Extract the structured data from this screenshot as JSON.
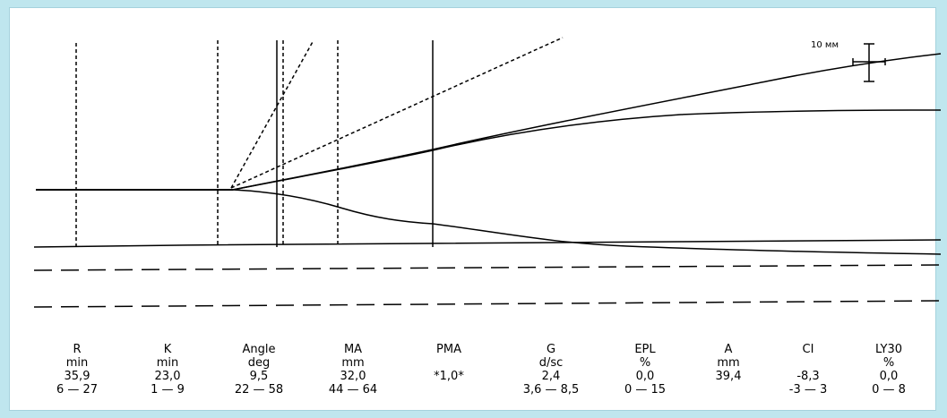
{
  "scale_label": "10 мм",
  "colors": {
    "background": "#bfe6ee",
    "panel": "#ffffff",
    "trace": "#000000"
  },
  "params": [
    {
      "name": "R",
      "unit": "min",
      "value": "35,9",
      "range": "6 — 27"
    },
    {
      "name": "K",
      "unit": "min",
      "value": "23,0",
      "range": "1 — 9"
    },
    {
      "name": "Angle",
      "unit": "deg",
      "value": "9,5",
      "range": "22 — 58"
    },
    {
      "name": "MA",
      "unit": "mm",
      "value": "32,0",
      "range": "44 — 64"
    },
    {
      "name": "PMA",
      "unit": "",
      "value": "*1,0*",
      "range": ""
    },
    {
      "name": "G",
      "unit": "d/sc",
      "value": "2,4",
      "range": "3,6 — 8,5"
    },
    {
      "name": "EPL",
      "unit": "%",
      "value": "0,0",
      "range": "0 — 15"
    },
    {
      "name": "A",
      "unit": "mm",
      "value": "39,4",
      "range": ""
    },
    {
      "name": "CI",
      "unit": "",
      "value": "-8,3",
      "range": "-3 — 3"
    },
    {
      "name": "LY30",
      "unit": "%",
      "value": "0,0",
      "range": "0 — 8"
    }
  ]
}
